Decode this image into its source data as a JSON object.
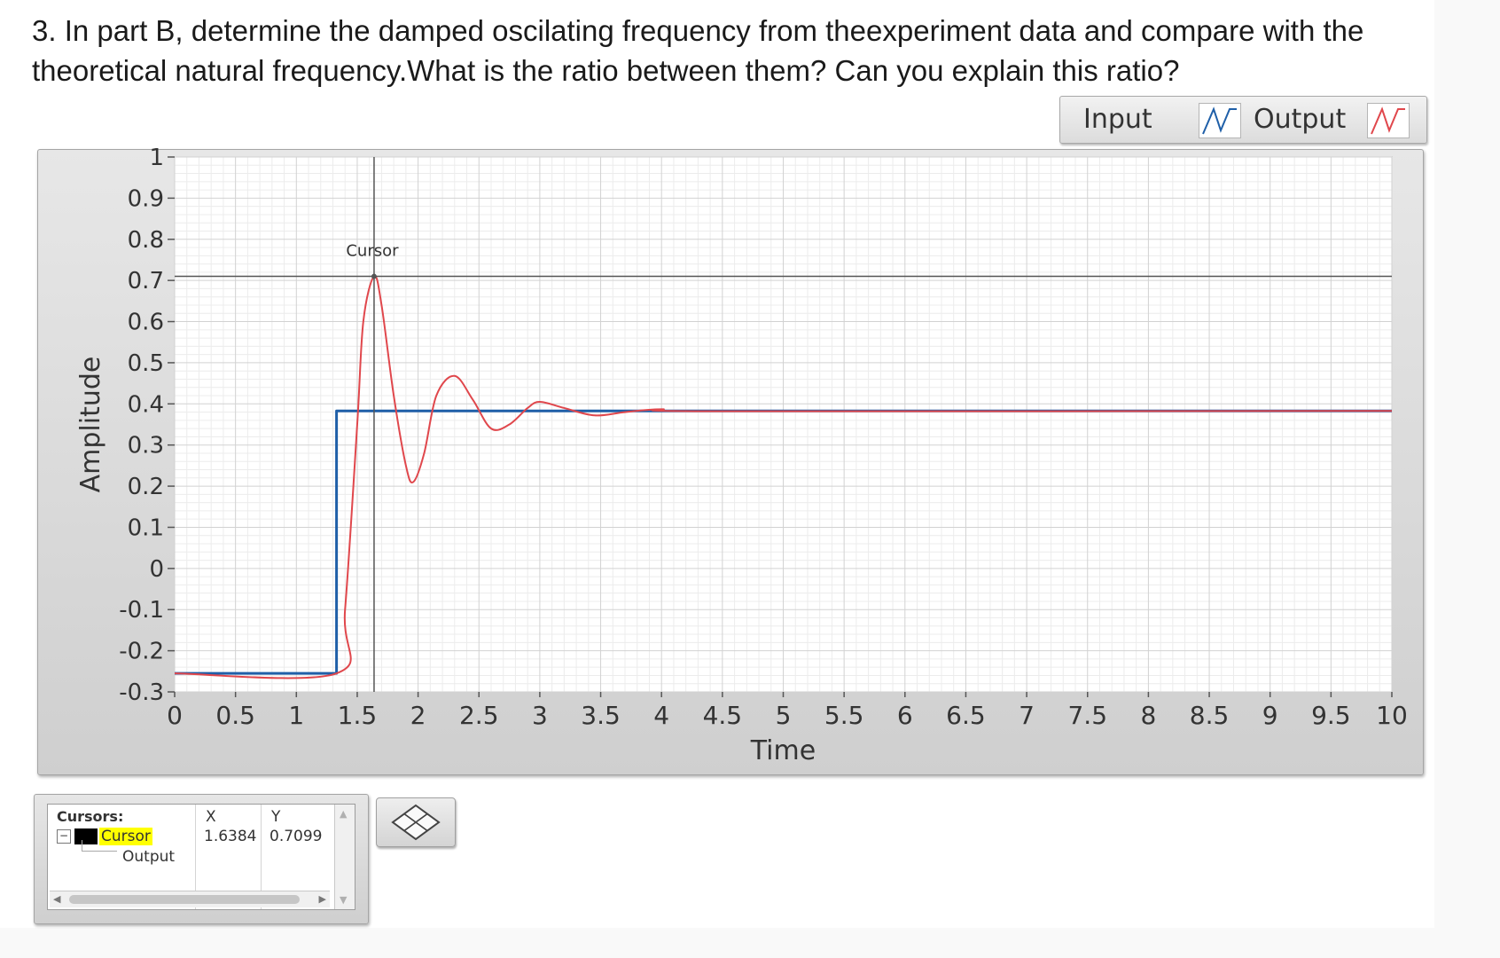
{
  "question": {
    "line1": "3. In part B, determine the damped oscilating frequency from theexperiment data and compare with the",
    "line2": "theoretical natural frequency.What is the ratio between them? Can you explain this ratio?"
  },
  "legend": {
    "input_label": "Input",
    "output_label": "Output",
    "input_color": "#1f5fa8",
    "output_color": "#e0474c"
  },
  "chart_data": {
    "type": "line",
    "xlabel": "Time",
    "ylabel": "Amplitude",
    "xlim": [
      0,
      10
    ],
    "ylim": [
      -0.3,
      1
    ],
    "x_ticks": [
      "0",
      "0.5",
      "1",
      "1.5",
      "2",
      "2.5",
      "3",
      "3.5",
      "4",
      "4.5",
      "5",
      "5.5",
      "6",
      "6.5",
      "7",
      "7.5",
      "8",
      "8.5",
      "9",
      "9.5",
      "10"
    ],
    "y_ticks": [
      "1",
      "0.9",
      "0.8",
      "0.7",
      "0.6",
      "0.5",
      "0.4",
      "0.3",
      "0.2",
      "0.1",
      "0",
      "-0.1",
      "-0.2",
      "-0.3"
    ],
    "grid": true,
    "series": [
      {
        "name": "Input",
        "color": "#1f5fa8",
        "x": [
          0,
          1.33,
          1.33,
          10
        ],
        "y": [
          -0.255,
          -0.255,
          0.383,
          0.383
        ]
      },
      {
        "name": "Output",
        "color": "#e0474c",
        "x": [
          0,
          1.33,
          1.4,
          1.5,
          1.55,
          1.6384,
          1.7,
          1.8,
          1.9,
          1.96,
          2.05,
          2.15,
          2.3,
          2.45,
          2.6,
          2.75,
          2.9,
          3.0,
          3.2,
          3.45,
          3.7,
          4.0,
          4.5,
          10
        ],
        "y": [
          -0.255,
          -0.255,
          -0.1,
          0.35,
          0.6,
          0.7099,
          0.64,
          0.42,
          0.25,
          0.21,
          0.28,
          0.42,
          0.468,
          0.41,
          0.34,
          0.35,
          0.39,
          0.405,
          0.39,
          0.372,
          0.38,
          0.387,
          0.382,
          0.383
        ]
      }
    ],
    "cursor": {
      "name": "Cursor",
      "x": 1.6384,
      "y": 0.7099,
      "label": "Cursor"
    }
  },
  "cursors_panel": {
    "title": "Cursors:",
    "col_x": "X",
    "col_y": "Y",
    "rows": [
      {
        "name": "Cursor",
        "plot": "Output",
        "x": "1.6384",
        "y": "0.7099"
      }
    ]
  }
}
